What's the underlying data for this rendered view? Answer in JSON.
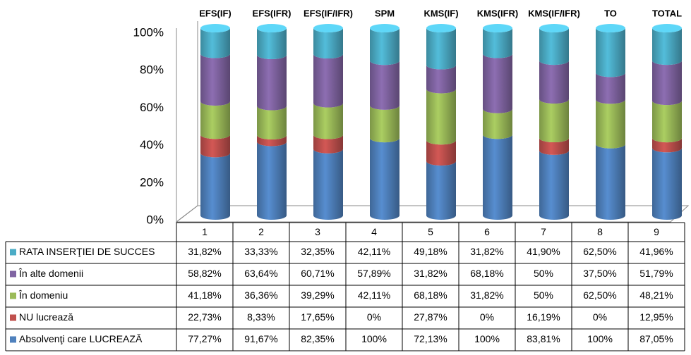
{
  "chart_data": {
    "type": "stacked_cylinder_100",
    "group_labels": [
      "EFS(IF)",
      "EFS(IFR)",
      "EFS(IF/IFR)",
      "SPM",
      "KMS(IF)",
      "KMS(IFR)",
      "KMS(IF/IFR)",
      "TO",
      "TOTAL"
    ],
    "categories": [
      "1",
      "2",
      "3",
      "4",
      "5",
      "6",
      "7",
      "8",
      "9"
    ],
    "ylim": [
      0,
      100
    ],
    "yticks": [
      {
        "value": 0,
        "label": "0%"
      },
      {
        "value": 20,
        "label": "20%"
      },
      {
        "value": 40,
        "label": "40%"
      },
      {
        "value": 60,
        "label": "60%"
      },
      {
        "value": 80,
        "label": "80%"
      },
      {
        "value": 100,
        "label": "100%"
      }
    ],
    "grid": false,
    "series": [
      {
        "name": "Absolvenţi care LUCREAZĂ",
        "color": "#4f81bd",
        "values": [
          77.27,
          91.67,
          82.35,
          100,
          72.13,
          100,
          83.81,
          100,
          87.05
        ],
        "value_labels": [
          "77,27%",
          "91,67%",
          "82,35%",
          "100%",
          "72,13%",
          "100%",
          "83,81%",
          "100%",
          "87,05%"
        ]
      },
      {
        "name": "NU lucrează",
        "color": "#c0504d",
        "values": [
          22.73,
          8.33,
          17.65,
          0,
          27.87,
          0,
          16.19,
          0,
          12.95
        ],
        "value_labels": [
          "22,73%",
          "8,33%",
          "17,65%",
          "0%",
          "27,87%",
          "0%",
          "16,19%",
          "0%",
          "12,95%"
        ]
      },
      {
        "name": "În domeniu",
        "color": "#9bbb59",
        "values": [
          41.18,
          36.36,
          39.29,
          42.11,
          68.18,
          31.82,
          50,
          62.5,
          48.21
        ],
        "value_labels": [
          "41,18%",
          "36,36%",
          "39,29%",
          "42,11%",
          "68,18%",
          "31,82%",
          "50%",
          "62,50%",
          "48,21%"
        ]
      },
      {
        "name": "În alte  domenii",
        "color": "#8064a2",
        "values": [
          58.82,
          63.64,
          60.71,
          57.89,
          31.82,
          68.18,
          50,
          37.5,
          51.79
        ],
        "value_labels": [
          "58,82%",
          "63,64%",
          "60,71%",
          "57,89%",
          "31,82%",
          "68,18%",
          "50%",
          "37,50%",
          "51,79%"
        ]
      },
      {
        "name": "RATA INSERŢIEI DE SUCCES",
        "color": "#4bacc6",
        "values": [
          31.82,
          33.33,
          32.35,
          42.11,
          49.18,
          31.82,
          41.9,
          62.5,
          41.96
        ],
        "value_labels": [
          "31,82%",
          "33,33%",
          "32,35%",
          "42,11%",
          "49,18%",
          "31,82%",
          "41,90%",
          "62,50%",
          "41,96%"
        ]
      }
    ]
  }
}
